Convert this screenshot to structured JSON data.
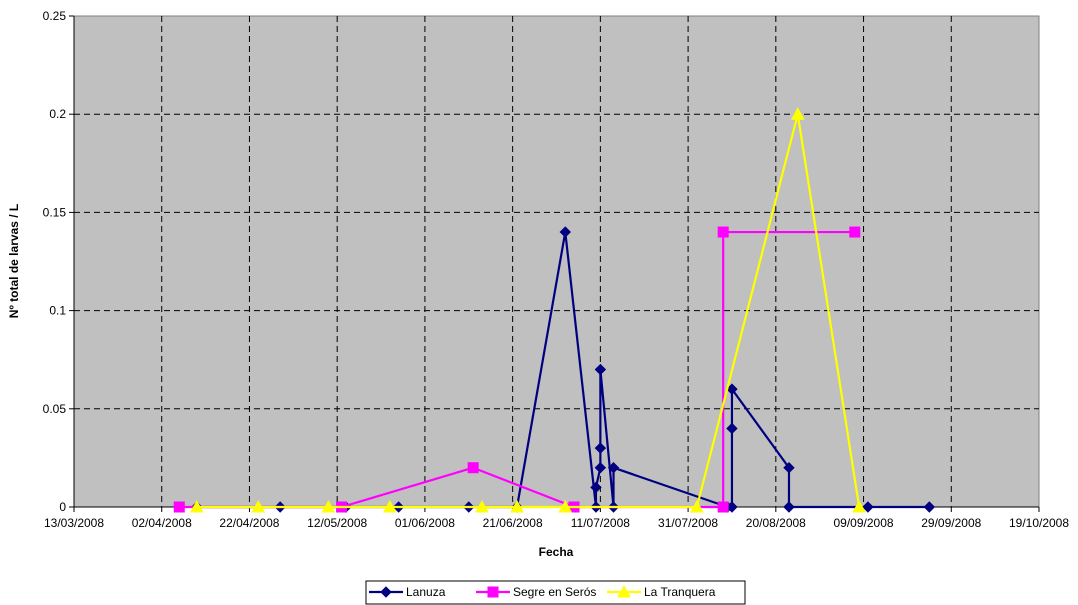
{
  "chart_data": {
    "type": "line",
    "title": "",
    "xlabel": "Fecha",
    "ylabel": "Nº total de larvas / L",
    "x_ticks": [
      "13/03/2008",
      "02/04/2008",
      "22/04/2008",
      "12/05/2008",
      "01/06/2008",
      "21/06/2008",
      "11/07/2008",
      "31/07/2008",
      "20/08/2008",
      "09/09/2008",
      "29/09/2008",
      "19/10/2008"
    ],
    "xlim": [
      "2008-03-13",
      "2008-10-19"
    ],
    "y_ticks": [
      "0",
      "0.05",
      "0.1",
      "0.15",
      "0.2",
      "0.25"
    ],
    "ylim": [
      0,
      0.25
    ],
    "grid": true,
    "plot_background": "#C0C0C0",
    "legend_position": "bottom",
    "series": [
      {
        "name": "Lanuza",
        "color": "#000080",
        "marker": "diamond",
        "points": [
          [
            "2008-04-10",
            0
          ],
          [
            "2008-04-29",
            0
          ],
          [
            "2008-05-14",
            0
          ],
          [
            "2008-05-26",
            0
          ],
          [
            "2008-06-11",
            0
          ],
          [
            "2008-06-22",
            0
          ],
          [
            "2008-07-03",
            0.14
          ],
          [
            "2008-07-10",
            0
          ],
          [
            "2008-07-10",
            0.01
          ],
          [
            "2008-07-11",
            0.02
          ],
          [
            "2008-07-11",
            0.03
          ],
          [
            "2008-07-11",
            0.07
          ],
          [
            "2008-07-14",
            0
          ],
          [
            "2008-07-14",
            0.02
          ],
          [
            "2008-08-09",
            0
          ],
          [
            "2008-08-10",
            0
          ],
          [
            "2008-08-10",
            0.04
          ],
          [
            "2008-08-10",
            0.06
          ],
          [
            "2008-08-23",
            0.02
          ],
          [
            "2008-08-23",
            0
          ],
          [
            "2008-09-10",
            0
          ],
          [
            "2008-09-24",
            0
          ]
        ]
      },
      {
        "name": "Segre en Serós",
        "color": "#FF00FF",
        "marker": "square",
        "points": [
          [
            "2008-04-06",
            0
          ],
          [
            "2008-05-13",
            0
          ],
          [
            "2008-06-12",
            0.02
          ],
          [
            "2008-07-05",
            0
          ],
          [
            "2008-08-08",
            0
          ],
          [
            "2008-08-08",
            0.14
          ],
          [
            "2008-09-07",
            0.14
          ]
        ]
      },
      {
        "name": "La Tranquera",
        "color": "#FFFF00",
        "marker": "triangle",
        "points": [
          [
            "2008-04-10",
            0
          ],
          [
            "2008-04-24",
            0
          ],
          [
            "2008-05-10",
            0
          ],
          [
            "2008-05-24",
            0
          ],
          [
            "2008-06-14",
            0
          ],
          [
            "2008-06-22",
            0
          ],
          [
            "2008-07-03",
            0
          ],
          [
            "2008-08-02",
            0
          ],
          [
            "2008-08-25",
            0.2
          ],
          [
            "2008-09-08",
            0
          ]
        ]
      }
    ]
  }
}
